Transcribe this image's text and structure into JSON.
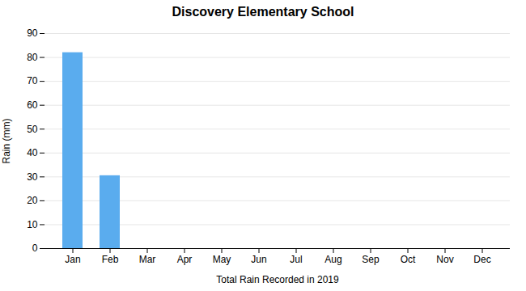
{
  "chart_data": {
    "type": "bar",
    "title": "Discovery Elementary School",
    "xlabel": "Total Rain Recorded in 2019",
    "ylabel": "Rain (mm)",
    "categories": [
      "Jan",
      "Feb",
      "Mar",
      "Apr",
      "May",
      "Jun",
      "Jul",
      "Aug",
      "Sep",
      "Oct",
      "Nov",
      "Dec"
    ],
    "values": [
      82,
      30.5,
      0,
      0,
      0,
      0,
      0,
      0,
      0,
      0,
      0,
      0
    ],
    "color": "#5aacee",
    "ylim": [
      0,
      90
    ],
    "yticks": [
      0,
      10,
      20,
      30,
      40,
      50,
      60,
      70,
      80,
      90
    ],
    "grid": true
  }
}
